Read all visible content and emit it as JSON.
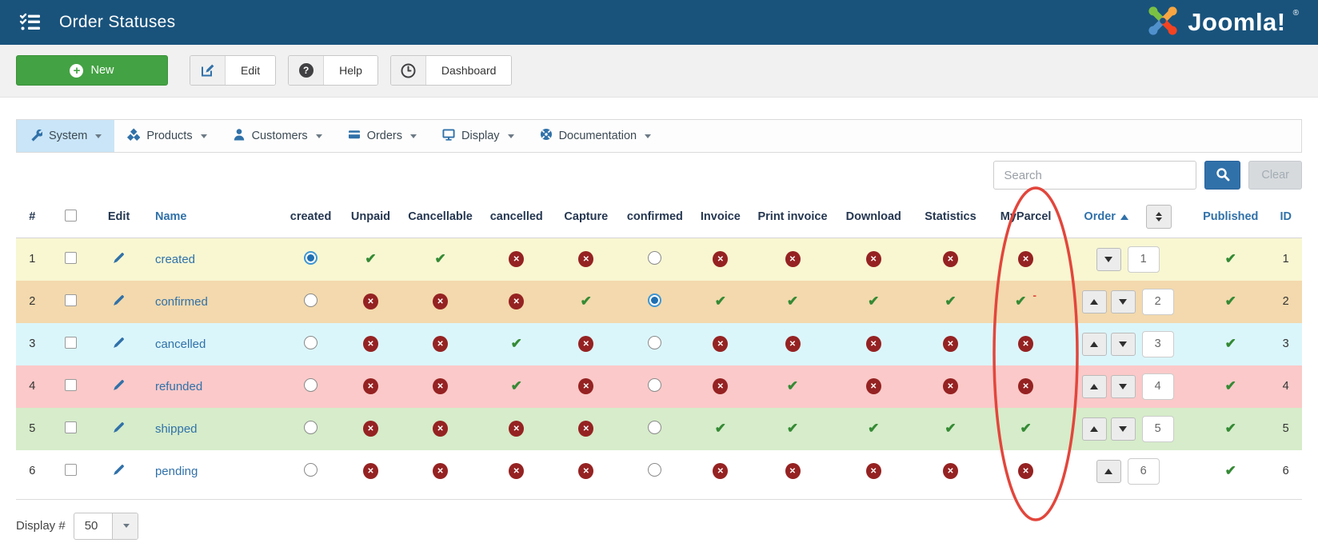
{
  "header": {
    "title": "Order Statuses",
    "logo_text": "Joomla!",
    "logo_reg": "®"
  },
  "toolbar": {
    "new_label": "New",
    "edit_label": "Edit",
    "help_label": "Help",
    "dashboard_label": "Dashboard"
  },
  "menubar": {
    "items": [
      {
        "label": "System",
        "icon": "wrench-icon",
        "active": true
      },
      {
        "label": "Products",
        "icon": "cubes-icon",
        "active": false
      },
      {
        "label": "Customers",
        "icon": "user-icon",
        "active": false
      },
      {
        "label": "Orders",
        "icon": "credit-card-icon",
        "active": false
      },
      {
        "label": "Display",
        "icon": "monitor-icon",
        "active": false
      },
      {
        "label": "Documentation",
        "icon": "life-ring-icon",
        "active": false
      }
    ]
  },
  "filter": {
    "search_placeholder": "Search",
    "clear_label": "Clear"
  },
  "table": {
    "columns": [
      {
        "id": "num",
        "label": "#",
        "sortable": false
      },
      {
        "id": "select",
        "label": "",
        "sortable": false,
        "checkbox": true
      },
      {
        "id": "edit",
        "label": "Edit",
        "sortable": false
      },
      {
        "id": "name",
        "label": "Name",
        "sortable": true
      },
      {
        "id": "created",
        "label": "created",
        "sortable": false
      },
      {
        "id": "unpaid",
        "label": "Unpaid",
        "sortable": false
      },
      {
        "id": "cancellable",
        "label": "Cancellable",
        "sortable": false
      },
      {
        "id": "cancelled",
        "label": "cancelled",
        "sortable": false
      },
      {
        "id": "capture",
        "label": "Capture",
        "sortable": false
      },
      {
        "id": "confirmed",
        "label": "confirmed",
        "sortable": false
      },
      {
        "id": "invoice",
        "label": "Invoice",
        "sortable": false
      },
      {
        "id": "print_invoice",
        "label": "Print invoice",
        "sortable": false
      },
      {
        "id": "download",
        "label": "Download",
        "sortable": false
      },
      {
        "id": "statistics",
        "label": "Statistics",
        "sortable": false
      },
      {
        "id": "myparcel",
        "label": "MyParcel",
        "sortable": false
      },
      {
        "id": "order",
        "label": "Order",
        "sortable": true,
        "sort_direction": "asc",
        "has_reorder_button": true
      },
      {
        "id": "published",
        "label": "Published",
        "sortable": true
      },
      {
        "id": "id_col",
        "label": "ID",
        "sortable": true
      }
    ],
    "rows": [
      {
        "num": "1",
        "name": "created",
        "created": "selected",
        "unpaid": "yes",
        "cancellable": "yes",
        "cancelled": "no",
        "capture": "no",
        "confirmed": "unselected",
        "invoice": "no",
        "print_invoice": "no",
        "download": "no",
        "statistics": "no",
        "myparcel": "no",
        "order_value": "1",
        "order_buttons": [
          "down"
        ],
        "published": "yes",
        "id": "1",
        "row_color": "#f8f7d2"
      },
      {
        "num": "2",
        "name": "confirmed",
        "created": "unselected",
        "unpaid": "no",
        "cancellable": "no",
        "cancelled": "no",
        "capture": "yes",
        "confirmed": "selected",
        "invoice": "yes",
        "print_invoice": "yes",
        "download": "yes",
        "statistics": "yes",
        "myparcel": "yes",
        "myparcel_note": "-",
        "order_value": "2",
        "order_buttons": [
          "up",
          "down"
        ],
        "published": "yes",
        "id": "2",
        "row_color": "#f3d9ad"
      },
      {
        "num": "3",
        "name": "cancelled",
        "created": "unselected",
        "unpaid": "no",
        "cancellable": "no",
        "cancelled": "yes",
        "capture": "no",
        "confirmed": "unselected",
        "invoice": "no",
        "print_invoice": "no",
        "download": "no",
        "statistics": "no",
        "myparcel": "no",
        "order_value": "3",
        "order_buttons": [
          "up",
          "down"
        ],
        "published": "yes",
        "id": "3",
        "row_color": "#dbf6fb"
      },
      {
        "num": "4",
        "name": "refunded",
        "created": "unselected",
        "unpaid": "no",
        "cancellable": "no",
        "cancelled": "yes",
        "capture": "no",
        "confirmed": "unselected",
        "invoice": "no",
        "print_invoice": "yes",
        "download": "no",
        "statistics": "no",
        "myparcel": "no",
        "order_value": "4",
        "order_buttons": [
          "up",
          "down"
        ],
        "published": "yes",
        "id": "4",
        "row_color": "#fbc9c9"
      },
      {
        "num": "5",
        "name": "shipped",
        "created": "unselected",
        "unpaid": "no",
        "cancellable": "no",
        "cancelled": "no",
        "capture": "no",
        "confirmed": "unselected",
        "invoice": "yes",
        "print_invoice": "yes",
        "download": "yes",
        "statistics": "yes",
        "myparcel": "yes",
        "order_value": "5",
        "order_buttons": [
          "up",
          "down"
        ],
        "published": "yes",
        "id": "5",
        "row_color": "#d6ecca"
      },
      {
        "num": "6",
        "name": "pending",
        "created": "unselected",
        "unpaid": "no",
        "cancellable": "no",
        "cancelled": "no",
        "capture": "no",
        "confirmed": "unselected",
        "invoice": "no",
        "print_invoice": "no",
        "download": "no",
        "statistics": "no",
        "myparcel": "no",
        "order_value": "6",
        "order_buttons": [
          "up"
        ],
        "published": "yes",
        "id": "6",
        "row_color": "#ffffff"
      }
    ]
  },
  "pagination": {
    "display_label": "Display #",
    "display_value": "50"
  },
  "annotation": {
    "shape": "ellipse",
    "target": "MyParcel column",
    "color": "#e2463c"
  },
  "palette": {
    "navbar": "#19537c",
    "link_blue": "#3071a9",
    "new_green": "#43a243",
    "check_green": "#358a35",
    "cross_red": "#952222",
    "active_menu": "#c9e5f7"
  }
}
